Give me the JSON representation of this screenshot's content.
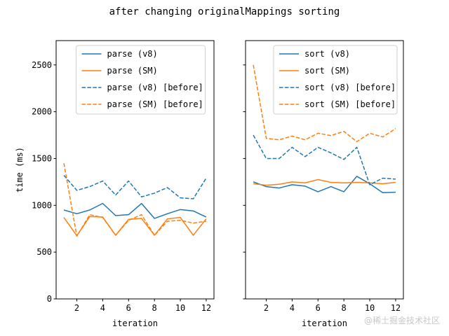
{
  "figure": {
    "title": "after changing originalMappings sorting",
    "watermark": "@稀土掘金技术社区"
  },
  "chart_data": [
    {
      "type": "line",
      "xlabel": "iteration",
      "ylabel": "time (ms)",
      "xlim": [
        0.4,
        12.6
      ],
      "ylim": [
        0,
        2760
      ],
      "xticks": [
        "2",
        "4",
        "6",
        "8",
        "10",
        "12"
      ],
      "yticks": [
        "0",
        "500",
        "1000",
        "1500",
        "2000",
        "2500"
      ],
      "legend": "upper-center",
      "x": [
        1,
        2,
        3,
        4,
        5,
        6,
        7,
        8,
        9,
        10,
        11,
        12
      ],
      "series": [
        {
          "name": "parse (v8)",
          "color": "#1f77b4",
          "dash": false,
          "values": [
            950,
            910,
            950,
            1020,
            890,
            900,
            1020,
            860,
            910,
            955,
            940,
            875
          ]
        },
        {
          "name": "parse (SM)",
          "color": "#ff7f0e",
          "dash": false,
          "values": [
            870,
            675,
            880,
            875,
            680,
            850,
            860,
            680,
            855,
            870,
            680,
            855
          ]
        },
        {
          "name": "parse (v8) [before]",
          "color": "#1f77b4",
          "dash": true,
          "values": [
            1320,
            1160,
            1200,
            1260,
            1110,
            1260,
            1090,
            1130,
            1190,
            1080,
            1070,
            1290
          ]
        },
        {
          "name": "parse (SM) [before]",
          "color": "#ff7f0e",
          "dash": true,
          "values": [
            1450,
            670,
            900,
            870,
            680,
            840,
            900,
            680,
            830,
            840,
            810,
            830
          ]
        }
      ]
    },
    {
      "type": "line",
      "xlabel": "iteration",
      "ylabel": "",
      "xlim": [
        0.4,
        12.6
      ],
      "ylim": [
        0,
        2760
      ],
      "xticks": [
        "2",
        "4",
        "6",
        "8",
        "10",
        "12"
      ],
      "yticks": [],
      "legend": "upper-right",
      "x": [
        1,
        2,
        3,
        4,
        5,
        6,
        7,
        8,
        9,
        10,
        11,
        12
      ],
      "series": [
        {
          "name": "sort (v8)",
          "color": "#1f77b4",
          "dash": false,
          "values": [
            1250,
            1200,
            1185,
            1220,
            1205,
            1145,
            1200,
            1145,
            1310,
            1230,
            1135,
            1140
          ]
        },
        {
          "name": "sort (SM)",
          "color": "#ff7f0e",
          "dash": false,
          "values": [
            1230,
            1215,
            1225,
            1250,
            1240,
            1275,
            1245,
            1240,
            1245,
            1240,
            1230,
            1245
          ]
        },
        {
          "name": "sort (v8) [before]",
          "color": "#1f77b4",
          "dash": true,
          "values": [
            1750,
            1500,
            1500,
            1620,
            1520,
            1620,
            1560,
            1490,
            1620,
            1220,
            1290,
            1280
          ]
        },
        {
          "name": "sort (SM) [before]",
          "color": "#ff7f0e",
          "dash": true,
          "values": [
            2500,
            1715,
            1700,
            1740,
            1700,
            1770,
            1745,
            1790,
            1680,
            1770,
            1730,
            1820
          ]
        }
      ]
    }
  ]
}
